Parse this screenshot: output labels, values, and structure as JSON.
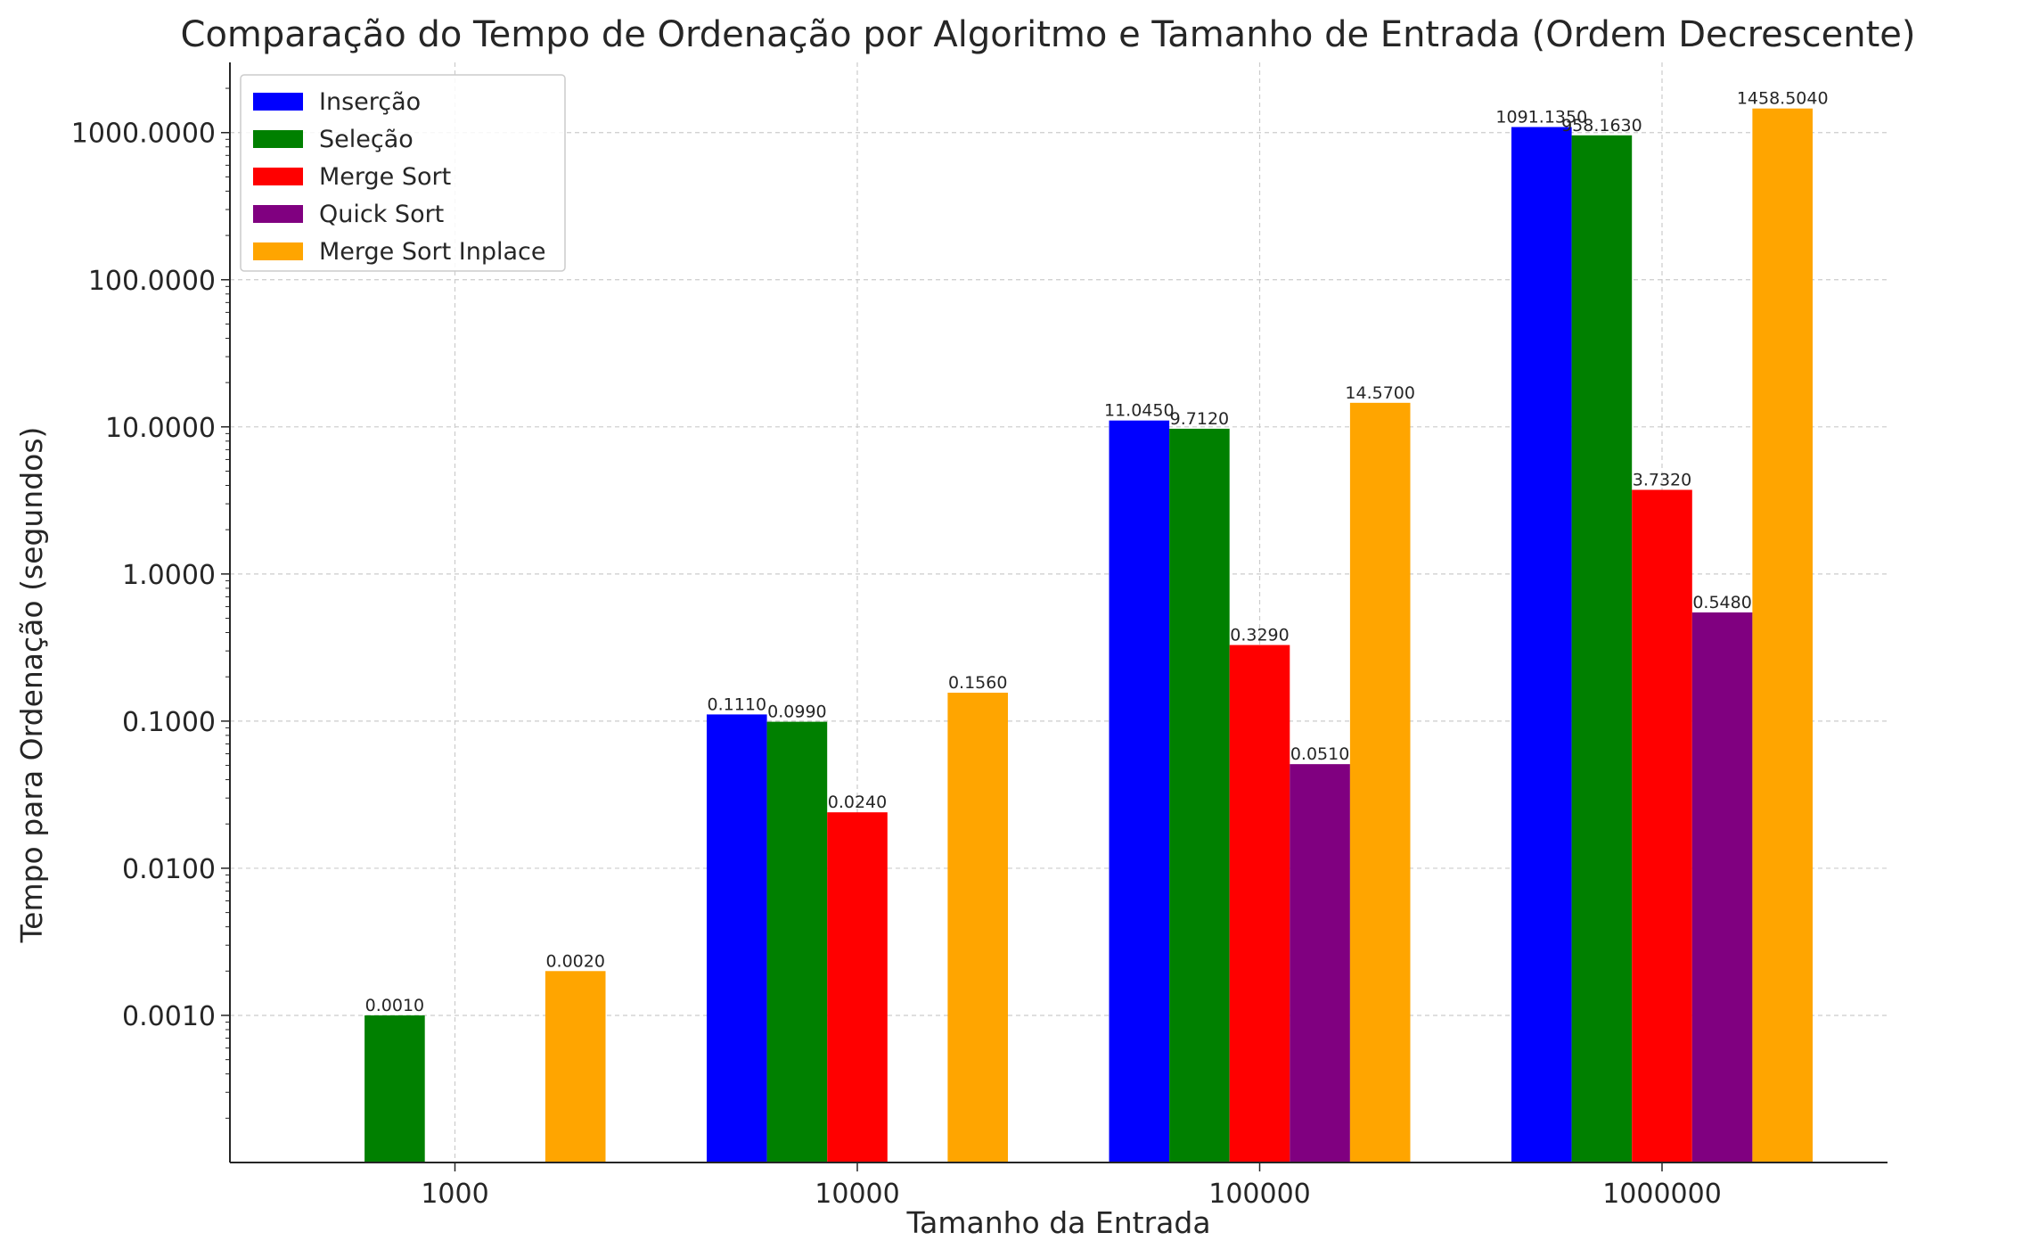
{
  "chart_data": {
    "type": "bar",
    "title": "Comparação do Tempo de Ordenação por Algoritmo e Tamanho de Entrada (Ordem Decrescente)",
    "xlabel": "Tamanho da Entrada",
    "ylabel": "Tempo para Ordenação (segundos)",
    "y_scale": "log",
    "ylim": [
      0.0001,
      3000
    ],
    "y_ticks": [
      0.001,
      0.01,
      0.1,
      1,
      10,
      100,
      1000
    ],
    "y_tick_labels": [
      "0.0010",
      "0.0100",
      "0.1000",
      "1.0000",
      "10.0000",
      "100.0000",
      "1000.0000"
    ],
    "grid": true,
    "legend_position": "top-left",
    "categories": [
      "1000",
      "10000",
      "100000",
      "1000000"
    ],
    "series": [
      {
        "name": "Inserção",
        "color": "#0000ff",
        "values": [
          0.0,
          0.111,
          11.045,
          1091.135
        ],
        "labels": [
          "",
          "0.1110",
          "11.0450",
          "1091.1350"
        ]
      },
      {
        "name": "Seleção",
        "color": "#008000",
        "values": [
          0.001,
          0.099,
          9.712,
          958.163
        ],
        "labels": [
          "0.0010",
          "0.0990",
          "9.7120",
          "958.1630"
        ]
      },
      {
        "name": "Merge Sort",
        "color": "#ff0000",
        "values": [
          0.0,
          0.024,
          0.329,
          3.732
        ],
        "labels": [
          "",
          "0.0240",
          "0.3290",
          "3.7320"
        ]
      },
      {
        "name": "Quick Sort",
        "color": "#800080",
        "values": [
          0.0,
          0.0,
          0.051,
          0.548
        ],
        "labels": [
          "",
          "",
          "0.0510",
          "0.5480"
        ]
      },
      {
        "name": "Merge Sort Inplace",
        "color": "#ffa500",
        "values": [
          0.002,
          0.156,
          14.57,
          1458.504
        ],
        "labels": [
          "0.0020",
          "0.1560",
          "14.5700",
          "1458.5040"
        ]
      }
    ]
  }
}
